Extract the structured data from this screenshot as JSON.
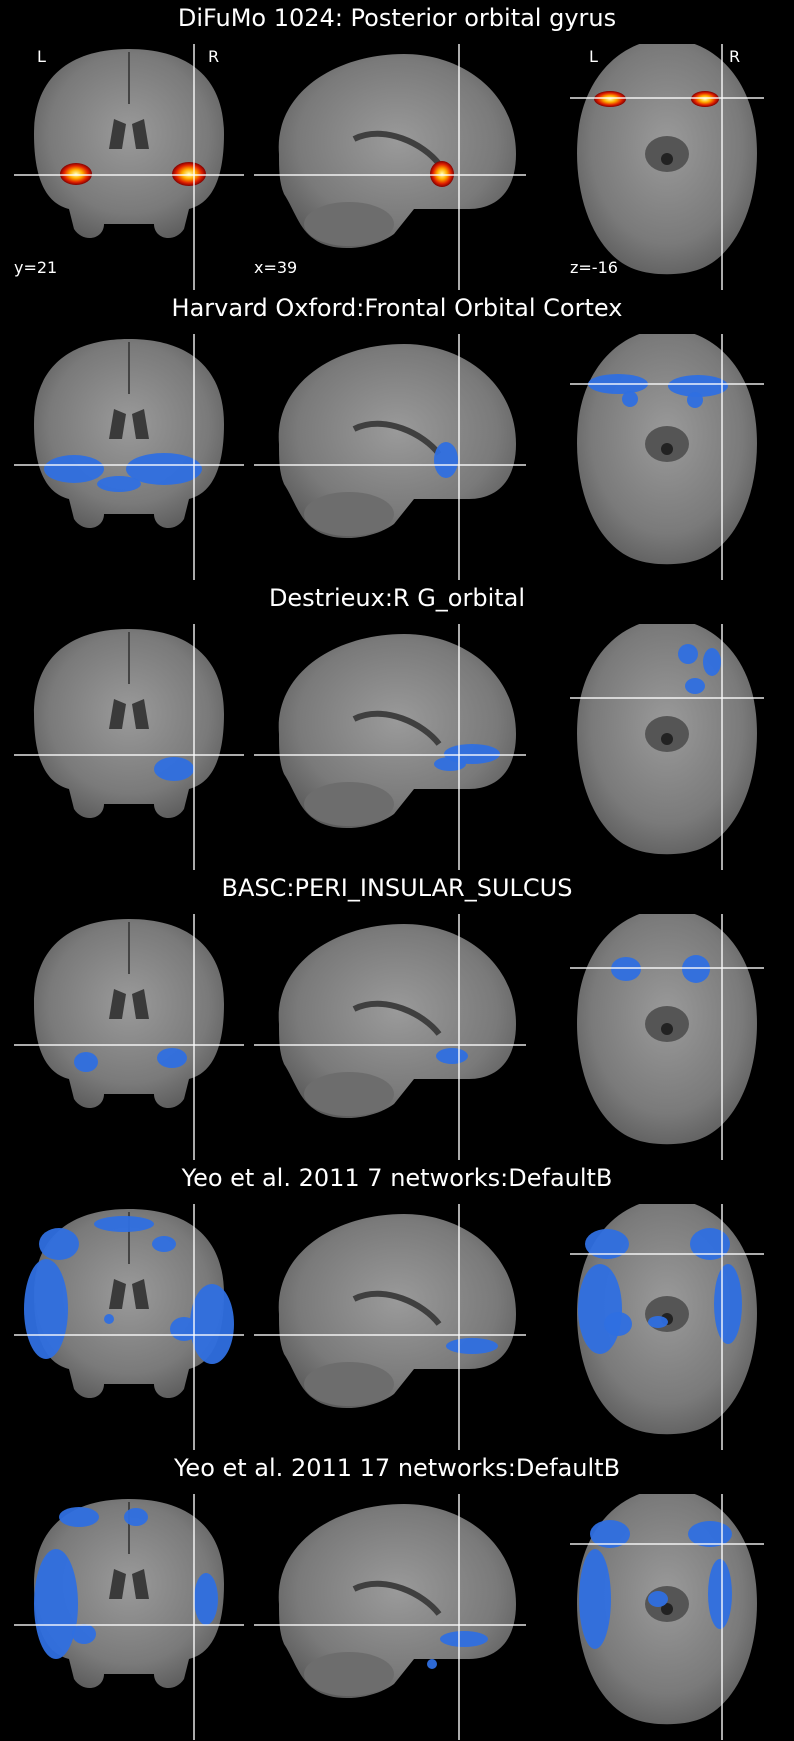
{
  "rows": [
    {
      "title": "DiFuMo 1024: Posterior orbital gyrus",
      "overlay": "hot",
      "overlay_color": "#ffb000"
    },
    {
      "title": "Harvard Oxford:Frontal Orbital Cortex",
      "overlay": "blue",
      "overlay_color": "#2f6fe0"
    },
    {
      "title": "Destrieux:R G_orbital",
      "overlay": "blue",
      "overlay_color": "#2f6fe0"
    },
    {
      "title": "BASC:PERI_INSULAR_SULCUS",
      "overlay": "blue",
      "overlay_color": "#2f6fe0"
    },
    {
      "title": "Yeo et al. 2011 7 networks:DefaultB",
      "overlay": "blue",
      "overlay_color": "#2f6fe0"
    },
    {
      "title": "Yeo et al. 2011 17 networks:DefaultB",
      "overlay": "blue",
      "overlay_color": "#2f6fe0"
    }
  ],
  "orientation": {
    "left": "L",
    "right": "R"
  },
  "coords": {
    "coronal": "y=21",
    "sagittal": "x=39",
    "axial": "z=-16"
  },
  "colors": {
    "background": "#000000",
    "brain": "#8a8a8a",
    "crosshair": "#ffffff"
  }
}
